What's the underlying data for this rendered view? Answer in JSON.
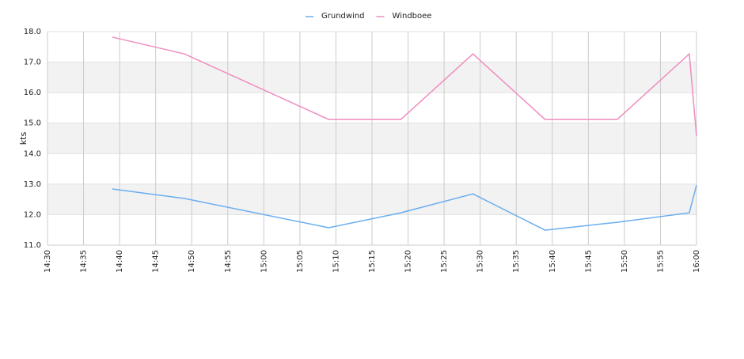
{
  "chart_data": {
    "type": "line",
    "y_label": "kts",
    "x": [
      "14:39",
      "14:49",
      "15:09",
      "15:19",
      "15:29",
      "15:39",
      "15:49",
      "15:59",
      "16:00"
    ],
    "series": [
      {
        "name": "Grundwind",
        "color": "#6aaef0",
        "values": [
          12.84,
          12.53,
          11.57,
          12.06,
          12.68,
          11.49,
          11.75,
          12.06,
          12.97
        ]
      },
      {
        "name": "Windboee",
        "color": "#f08cc0",
        "values": [
          17.82,
          17.27,
          15.12,
          15.12,
          17.27,
          15.12,
          15.12,
          17.27,
          14.58
        ]
      }
    ],
    "xlim": [
      "14:30",
      "16:00"
    ],
    "xticks": [
      "14:30",
      "14:35",
      "14:40",
      "14:45",
      "14:50",
      "14:55",
      "15:00",
      "15:05",
      "15:10",
      "15:15",
      "15:20",
      "15:25",
      "15:30",
      "15:35",
      "15:40",
      "15:45",
      "15:50",
      "15:55",
      "16:00"
    ],
    "ylim": [
      11,
      18
    ],
    "yticks": [
      {
        "value": 11,
        "label": "11.0"
      },
      {
        "value": 12,
        "label": "12.0"
      },
      {
        "value": 13,
        "label": "13.0"
      },
      {
        "value": 14,
        "label": "14.0"
      },
      {
        "value": 15,
        "label": "15.0"
      },
      {
        "value": 16,
        "label": "16.0"
      },
      {
        "value": 17,
        "label": "17.0"
      },
      {
        "value": 18,
        "label": "18.0"
      }
    ],
    "grid": true,
    "legend": "top"
  }
}
